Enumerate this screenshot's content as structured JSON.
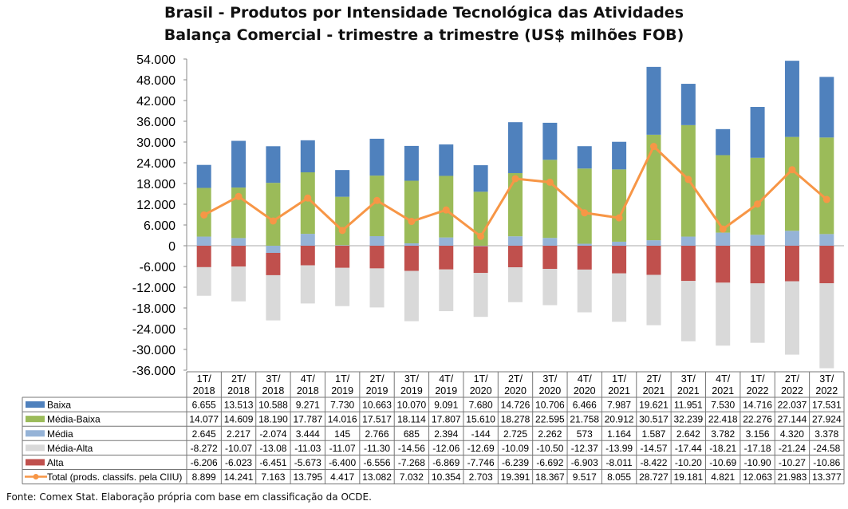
{
  "chart_data": {
    "type": "bar",
    "stacked": true,
    "title_lines": [
      "Brasil - Produtos por Intensidade Tecnológica das Atividades",
      "Balança Comercial - trimestre a trimestre (US$ milhões FOB)"
    ],
    "ylim": [
      -36000,
      54000
    ],
    "y_ticks": [
      54000,
      48000,
      42000,
      36000,
      30000,
      24000,
      18000,
      12000,
      6000,
      0,
      -6000,
      -12000,
      -18000,
      -24000,
      -30000,
      -36000
    ],
    "y_tick_labels": [
      "54.000",
      "48.000",
      "42.000",
      "36.000",
      "30.000",
      "24.000",
      "18.000",
      "12.000",
      "6.000",
      "0",
      "-6.000",
      "-12.000",
      "-18.000",
      "-24.000",
      "-30.000",
      "-36.000"
    ],
    "categories": [
      [
        "1T/",
        "2018"
      ],
      [
        "2T/",
        "2018"
      ],
      [
        "3T/",
        "2018"
      ],
      [
        "4T/",
        "2018"
      ],
      [
        "1T/",
        "2019"
      ],
      [
        "2T/",
        "2019"
      ],
      [
        "3T/",
        "2019"
      ],
      [
        "4T/",
        "2019"
      ],
      [
        "1T/",
        "2020"
      ],
      [
        "2T/",
        "2020"
      ],
      [
        "3T/",
        "2020"
      ],
      [
        "4T/",
        "2020"
      ],
      [
        "1T/",
        "2021"
      ],
      [
        "2T/",
        "2021"
      ],
      [
        "3T/",
        "2021"
      ],
      [
        "4T/",
        "2021"
      ],
      [
        "1T/",
        "2022"
      ],
      [
        "2T/",
        "2022"
      ],
      [
        "3T/",
        "2022"
      ]
    ],
    "series": [
      {
        "name": "Baixa",
        "type": "bar",
        "color": "#4F81BD",
        "values": [
          6655,
          13513,
          10588,
          9271,
          7730,
          10663,
          10070,
          9091,
          7680,
          14726,
          10706,
          6466,
          7987,
          19621,
          11951,
          7530,
          14716,
          22037,
          17531
        ],
        "labels": [
          "6.655",
          "13.513",
          "10.588",
          "9.271",
          "7.730",
          "10.663",
          "10.070",
          "9.091",
          "7.680",
          "14.726",
          "10.706",
          "6.466",
          "7.987",
          "19.621",
          "11.951",
          "7.530",
          "14.716",
          "22.037",
          "17.531"
        ]
      },
      {
        "name": "Média-Baixa",
        "type": "bar",
        "color": "#9BBB59",
        "values": [
          14077,
          14609,
          18190,
          17787,
          14016,
          17517,
          18114,
          17807,
          15610,
          18278,
          22595,
          21758,
          20912,
          30517,
          32239,
          22418,
          22276,
          27144,
          27924
        ],
        "labels": [
          "14.077",
          "14.609",
          "18.190",
          "17.787",
          "14.016",
          "17.517",
          "18.114",
          "17.807",
          "15.610",
          "18.278",
          "22.595",
          "21.758",
          "20.912",
          "30.517",
          "32.239",
          "22.418",
          "22.276",
          "27.144",
          "27.924"
        ]
      },
      {
        "name": "Média",
        "type": "bar",
        "color": "#95B3D7",
        "values": [
          2645,
          2217,
          -2074,
          3444,
          145,
          2766,
          685,
          2394,
          -144,
          2725,
          2262,
          573,
          1164,
          1587,
          2642,
          3782,
          3156,
          4320,
          3378
        ],
        "labels": [
          "2.645",
          "2.217",
          "-2.074",
          "3.444",
          "145",
          "2.766",
          "685",
          "2.394",
          "-144",
          "2.725",
          "2.262",
          "573",
          "1.164",
          "1.587",
          "2.642",
          "3.782",
          "3.156",
          "4.320",
          "3.378"
        ]
      },
      {
        "name": "Média-Alta",
        "type": "bar",
        "color": "#D9D9D9",
        "values": [
          -8272,
          -10070,
          -13080,
          -11030,
          -11070,
          -11300,
          -14560,
          -12060,
          -12690,
          -10090,
          -10500,
          -12370,
          -13990,
          -14570,
          -17440,
          -18210,
          -17180,
          -21240,
          -24580
        ],
        "labels": [
          "-8.272",
          "-10.07",
          "-13.08",
          "-11.03",
          "-11.07",
          "-11.30",
          "-14.56",
          "-12.06",
          "-12.69",
          "-10.09",
          "-10.50",
          "-12.37",
          "-13.99",
          "-14.57",
          "-17.44",
          "-18.21",
          "-17.18",
          "-21.24",
          "-24.58"
        ]
      },
      {
        "name": "Alta",
        "type": "bar",
        "color": "#C0504D",
        "values": [
          -6206,
          -6023,
          -6451,
          -5673,
          -6400,
          -6556,
          -7268,
          -6869,
          -7746,
          -6239,
          -6692,
          -6903,
          -8011,
          -8422,
          -10200,
          -10690,
          -10900,
          -10270,
          -10860
        ],
        "labels": [
          "-6.206",
          "-6.023",
          "-6.451",
          "-5.673",
          "-6.400",
          "-6.556",
          "-7.268",
          "-6.869",
          "-7.746",
          "-6.239",
          "-6.692",
          "-6.903",
          "-8.011",
          "-8.422",
          "-10.20",
          "-10.69",
          "-10.90",
          "-10.27",
          "-10.86"
        ]
      },
      {
        "name": "Total (prods. classifs. pela CIIU)",
        "type": "line",
        "color": "#F79646",
        "values": [
          8899,
          14241,
          7163,
          13795,
          4417,
          13082,
          7032,
          10354,
          2703,
          19391,
          18367,
          9517,
          8055,
          28727,
          19181,
          4821,
          12063,
          21983,
          13377
        ],
        "labels": [
          "8.899",
          "14.241",
          "7.163",
          "13.795",
          "4.417",
          "13.082",
          "7.032",
          "10.354",
          "2.703",
          "19.391",
          "18.367",
          "9.517",
          "8.055",
          "28.727",
          "19.181",
          "4.821",
          "12.063",
          "21.983",
          "13.377"
        ]
      }
    ],
    "stack_order": [
      "Média",
      "Média-Baixa",
      "Baixa",
      "Alta",
      "Média-Alta"
    ],
    "legend_placement": "data-table"
  },
  "source": "Fonte:  Comex Stat. Elaboração própria com base em classificação da OCDE."
}
